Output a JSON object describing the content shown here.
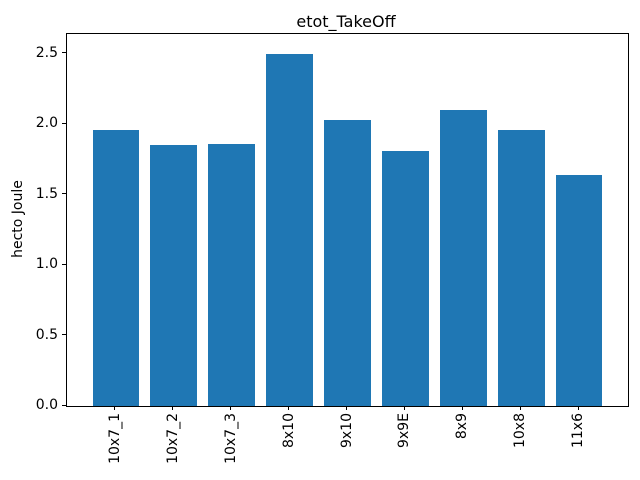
{
  "chart_data": {
    "type": "bar",
    "title": "etot_TakeOff",
    "xlabel": "",
    "ylabel": "hecto Joule",
    "categories": [
      "10x7_1",
      "10x7_2",
      "10x7_3",
      "8x10",
      "9x10",
      "9x9E",
      "8x9",
      "10x8",
      "11x6"
    ],
    "values": [
      1.96,
      1.85,
      1.86,
      2.5,
      2.03,
      1.81,
      2.1,
      1.96,
      1.64
    ],
    "yticks": [
      0.0,
      0.5,
      1.0,
      1.5,
      2.0,
      2.5
    ],
    "ytick_labels": [
      "0.0",
      "0.5",
      "1.0",
      "1.5",
      "2.0",
      "2.5"
    ],
    "ylim": [
      0,
      2.64
    ],
    "bar_color": "#1f77b4",
    "background_color": "#ffffff",
    "grid": false,
    "legend": "none",
    "xtick_rotation_deg": 90
  }
}
